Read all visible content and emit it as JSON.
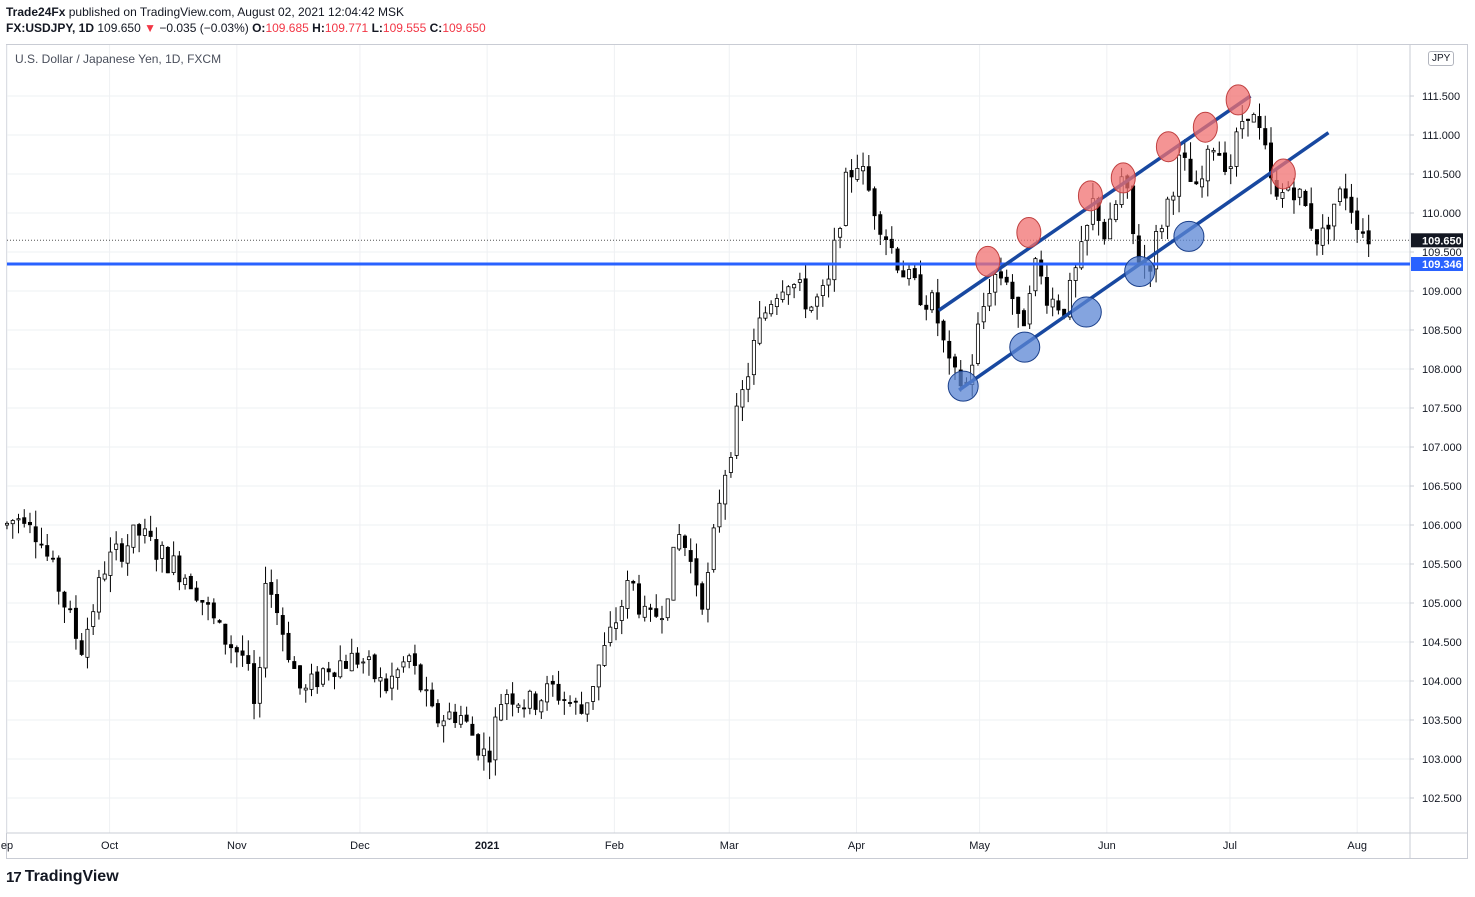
{
  "header": {
    "publisher": "Trade24Fx",
    "published_text": "published on TradingView.com, August 02, 2021 12:04:42 MSK",
    "symbol": "FX:USDJPY, 1D",
    "last": "109.650",
    "change": "−0.035 (−0.03%)",
    "o_label": "O:",
    "o": "109.685",
    "h_label": "H:",
    "h": "109.771",
    "l_label": "L:",
    "l": "109.555",
    "c_label": "C:",
    "c": "109.650"
  },
  "chart_title": "U.S. Dollar / Japanese Yen, 1D, FXCM",
  "currency_badge": "JPY",
  "footer": {
    "brand": "TradingView",
    "logo_mark": "17"
  },
  "colors": {
    "up": "#ffffff",
    "down": "#000000",
    "wick": "#000000",
    "channel": "#1848a0",
    "hline": "#2962ff",
    "top_marker": "#f07070",
    "bottom_marker": "#5b86d4"
  },
  "chart_data": {
    "type": "candlestick",
    "title": "U.S. Dollar / Japanese Yen, 1D, FXCM",
    "ylim": [
      102.0,
      112.0
    ],
    "ytick_labels": [
      "102.500",
      "103.000",
      "103.500",
      "104.000",
      "104.500",
      "105.000",
      "105.500",
      "106.000",
      "106.500",
      "107.000",
      "107.500",
      "108.000",
      "108.500",
      "109.000",
      "109.500",
      "110.000",
      "110.500",
      "111.000",
      "111.500"
    ],
    "x_tick_labels": [
      {
        "label": "ep",
        "day": 0
      },
      {
        "label": "Oct",
        "day": 25
      },
      {
        "label": "Nov",
        "day": 56
      },
      {
        "label": "Dec",
        "day": 86
      },
      {
        "label": "2021",
        "day": 117
      },
      {
        "label": "Feb",
        "day": 148
      },
      {
        "label": "Mar",
        "day": 176
      },
      {
        "label": "Apr",
        "day": 207
      },
      {
        "label": "May",
        "day": 237
      },
      {
        "label": "Jun",
        "day": 268
      },
      {
        "label": "Jul",
        "day": 298
      },
      {
        "label": "Aug",
        "day": 329
      }
    ],
    "days_range": [
      0,
      337
    ],
    "price_line": {
      "value": 109.65,
      "label": "109.650",
      "style": "dotted"
    },
    "horizontal_line": {
      "value": 109.346,
      "label": "109.346"
    },
    "channel_upper": [
      {
        "day": 227,
        "price": 108.75
      },
      {
        "day": 303,
        "price": 111.5
      }
    ],
    "channel_lower": [
      {
        "day": 232,
        "price": 107.73
      },
      {
        "day": 322,
        "price": 111.03
      }
    ],
    "top_markers": [
      {
        "day": 239,
        "price": 109.38
      },
      {
        "day": 249,
        "price": 109.75
      },
      {
        "day": 264,
        "price": 110.22
      },
      {
        "day": 272,
        "price": 110.45
      },
      {
        "day": 283,
        "price": 110.85
      },
      {
        "day": 292,
        "price": 111.1
      },
      {
        "day": 300,
        "price": 111.45
      },
      {
        "day": 311,
        "price": 110.5
      }
    ],
    "bottom_markers": [
      {
        "day": 233,
        "price": 107.78
      },
      {
        "day": 248,
        "price": 108.28
      },
      {
        "day": 263,
        "price": 108.73
      },
      {
        "day": 276,
        "price": 109.25
      },
      {
        "day": 288,
        "price": 109.7
      }
    ],
    "anchors": [
      {
        "day": 0,
        "price": 106.0
      },
      {
        "day": 5,
        "price": 106.2
      },
      {
        "day": 12,
        "price": 105.3
      },
      {
        "day": 18,
        "price": 104.4
      },
      {
        "day": 24,
        "price": 105.5
      },
      {
        "day": 32,
        "price": 105.9
      },
      {
        "day": 38,
        "price": 105.6
      },
      {
        "day": 45,
        "price": 105.3
      },
      {
        "day": 52,
        "price": 104.6
      },
      {
        "day": 58,
        "price": 104.3
      },
      {
        "day": 61,
        "price": 103.4
      },
      {
        "day": 63,
        "price": 105.4
      },
      {
        "day": 68,
        "price": 104.5
      },
      {
        "day": 72,
        "price": 103.8
      },
      {
        "day": 78,
        "price": 104.2
      },
      {
        "day": 86,
        "price": 104.3
      },
      {
        "day": 92,
        "price": 103.9
      },
      {
        "day": 98,
        "price": 104.3
      },
      {
        "day": 104,
        "price": 103.5
      },
      {
        "day": 110,
        "price": 103.6
      },
      {
        "day": 117,
        "price": 103.0
      },
      {
        "day": 121,
        "price": 103.9
      },
      {
        "day": 127,
        "price": 103.7
      },
      {
        "day": 133,
        "price": 103.9
      },
      {
        "day": 140,
        "price": 103.6
      },
      {
        "day": 145,
        "price": 104.3
      },
      {
        "day": 152,
        "price": 105.3
      },
      {
        "day": 156,
        "price": 104.7
      },
      {
        "day": 160,
        "price": 105.0
      },
      {
        "day": 164,
        "price": 105.9
      },
      {
        "day": 170,
        "price": 105.0
      },
      {
        "day": 174,
        "price": 106.5
      },
      {
        "day": 178,
        "price": 107.4
      },
      {
        "day": 183,
        "price": 108.5
      },
      {
        "day": 186,
        "price": 108.9
      },
      {
        "day": 190,
        "price": 109.2
      },
      {
        "day": 196,
        "price": 108.8
      },
      {
        "day": 200,
        "price": 109.0
      },
      {
        "day": 204,
        "price": 110.3
      },
      {
        "day": 207,
        "price": 110.7
      },
      {
        "day": 212,
        "price": 110.0
      },
      {
        "day": 216,
        "price": 109.5
      },
      {
        "day": 220,
        "price": 109.1
      },
      {
        "day": 226,
        "price": 108.8
      },
      {
        "day": 230,
        "price": 107.9
      },
      {
        "day": 234,
        "price": 107.8
      },
      {
        "day": 237,
        "price": 108.6
      },
      {
        "day": 240,
        "price": 109.2
      },
      {
        "day": 244,
        "price": 109.2
      },
      {
        "day": 247,
        "price": 108.4
      },
      {
        "day": 250,
        "price": 109.4
      },
      {
        "day": 254,
        "price": 108.9
      },
      {
        "day": 258,
        "price": 108.8
      },
      {
        "day": 262,
        "price": 109.5
      },
      {
        "day": 265,
        "price": 110.2
      },
      {
        "day": 268,
        "price": 109.6
      },
      {
        "day": 272,
        "price": 110.5
      },
      {
        "day": 275,
        "price": 109.5
      },
      {
        "day": 278,
        "price": 109.3
      },
      {
        "day": 282,
        "price": 110.0
      },
      {
        "day": 286,
        "price": 110.7
      },
      {
        "day": 290,
        "price": 110.2
      },
      {
        "day": 294,
        "price": 110.9
      },
      {
        "day": 298,
        "price": 110.6
      },
      {
        "day": 302,
        "price": 111.4
      },
      {
        "day": 306,
        "price": 110.9
      },
      {
        "day": 309,
        "price": 110.1
      },
      {
        "day": 313,
        "price": 110.4
      },
      {
        "day": 317,
        "price": 110.0
      },
      {
        "day": 320,
        "price": 109.6
      },
      {
        "day": 323,
        "price": 110.1
      },
      {
        "day": 326,
        "price": 110.3
      },
      {
        "day": 330,
        "price": 109.8
      },
      {
        "day": 333,
        "price": 109.65
      }
    ]
  }
}
